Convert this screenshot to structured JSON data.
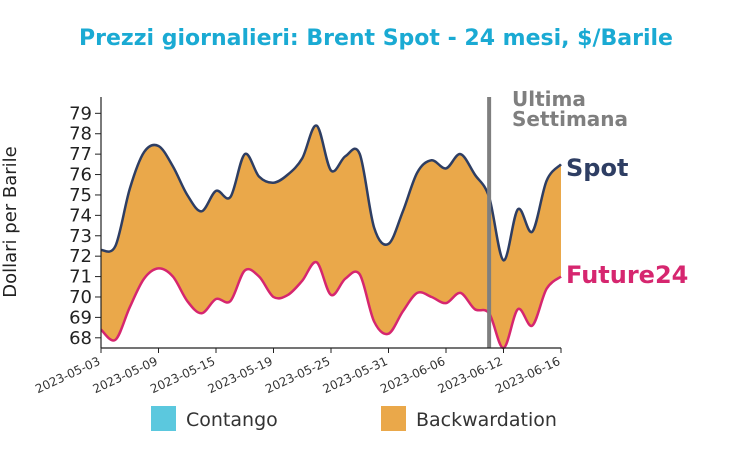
{
  "chart_data": {
    "type": "area",
    "title": "Prezzi giornalieri: Brent Spot - 24 mesi, $/Barile",
    "ylabel": "Dollari per Barile",
    "xlabel": "",
    "ylim": [
      67.5,
      79.8
    ],
    "yticks": [
      68,
      69,
      70,
      71,
      72,
      73,
      74,
      75,
      76,
      77,
      78,
      79
    ],
    "x_tick_labels": [
      "2023-05-03",
      "2023-05-09",
      "2023-05-15",
      "2023-05-19",
      "2023-05-25",
      "2023-05-31",
      "2023-06-06",
      "2023-06-12",
      "2023-06-16"
    ],
    "x": [
      "2023-05-03",
      "2023-05-04",
      "2023-05-05",
      "2023-05-08",
      "2023-05-09",
      "2023-05-10",
      "2023-05-11",
      "2023-05-12",
      "2023-05-15",
      "2023-05-16",
      "2023-05-17",
      "2023-05-18",
      "2023-05-19",
      "2023-05-22",
      "2023-05-23",
      "2023-05-24",
      "2023-05-25",
      "2023-05-26",
      "2023-05-29",
      "2023-05-30",
      "2023-05-31",
      "2023-06-01",
      "2023-06-02",
      "2023-06-05",
      "2023-06-06",
      "2023-06-07",
      "2023-06-08",
      "2023-06-09",
      "2023-06-12",
      "2023-06-13",
      "2023-06-14",
      "2023-06-15",
      "2023-06-16"
    ],
    "series": [
      {
        "name": "Spot",
        "color": "#2e3e63",
        "values": [
          72.3,
          72.5,
          75.3,
          77.1,
          77.4,
          76.4,
          75.0,
          74.2,
          75.2,
          74.9,
          77.0,
          75.9,
          75.6,
          76.0,
          76.8,
          78.4,
          76.2,
          76.9,
          77.0,
          73.4,
          72.6,
          74.2,
          76.1,
          76.7,
          76.3,
          77.0,
          76.0,
          74.9,
          71.8,
          74.3,
          73.2,
          75.7,
          76.5
        ]
      },
      {
        "name": "Future24",
        "color": "#d6266f",
        "values": [
          68.4,
          67.9,
          69.5,
          70.9,
          71.4,
          71.0,
          69.8,
          69.2,
          69.9,
          69.8,
          71.3,
          71.0,
          70.0,
          70.1,
          70.8,
          71.7,
          70.1,
          70.9,
          71.1,
          68.8,
          68.2,
          69.3,
          70.2,
          70.0,
          69.7,
          70.2,
          69.4,
          69.2,
          67.5,
          69.4,
          68.6,
          70.4,
          71.0
        ]
      }
    ],
    "fill": {
      "backwardation": "#eaa84a",
      "contango": "#5bc8de"
    },
    "annotation": {
      "line1": "Ultima",
      "line2": "Settimana",
      "at_x": "2023-06-09",
      "color": "#7f7f7f"
    },
    "legend": {
      "position": "bottom",
      "items": [
        {
          "label": "Contango",
          "color": "#5bc8de"
        },
        {
          "label": "Backwardation",
          "color": "#eaa84a"
        }
      ]
    },
    "grid": false
  },
  "colors": {
    "title": "#1aaad3",
    "axis": "#222222"
  }
}
